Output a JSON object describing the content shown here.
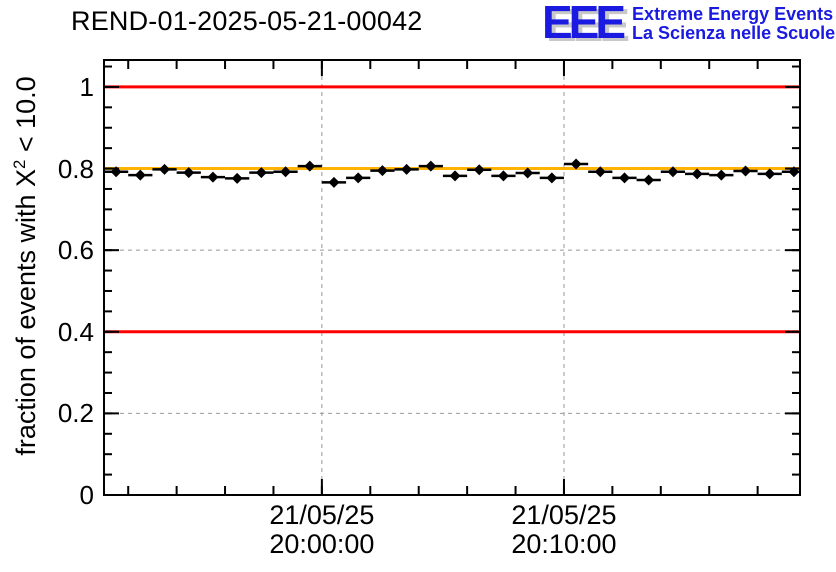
{
  "header": {
    "title": "REND-01-2025-05-21-00042",
    "logo": {
      "acronym": "EEE",
      "line1": "Extreme Energy Events",
      "line2": "La Scienza nelle Scuole",
      "color": "#1a1ae0",
      "shadow_color": "#c8c8c8"
    }
  },
  "chart_data": {
    "type": "scatter",
    "title": "REND-01-2025-05-21-00042",
    "ylabel": {
      "prefix": "fraction of events with X",
      "sup": "2",
      "suffix": " < 10.0"
    },
    "date": "21/05/25",
    "x_axis_type": "time",
    "x_range": [
      "19:51:00",
      "20:19:45"
    ],
    "y_range": [
      0,
      1.066
    ],
    "grid": {
      "on": true,
      "color": "#999999",
      "dash": "4 4"
    },
    "y_ticks": [
      {
        "value": 0,
        "label": "0"
      },
      {
        "value": 0.2,
        "label": "0.2"
      },
      {
        "value": 0.4,
        "label": "0.4"
      },
      {
        "value": 0.6,
        "label": "0.6"
      },
      {
        "value": 0.8,
        "label": "0.8"
      },
      {
        "value": 1,
        "label": "1"
      }
    ],
    "y_minor_step": 0.05,
    "x_minor_step_seconds": 120,
    "x_major_ticks": [
      {
        "time": "20:00:00",
        "label_line1": "21/05/25",
        "label_line2": "20:00:00"
      },
      {
        "time": "20:10:00",
        "label_line1": "21/05/25",
        "label_line2": "20:10:00"
      }
    ],
    "reference_lines": [
      {
        "y": 1.0,
        "color": "#ff0000"
      },
      {
        "y": 0.4,
        "color": "#ff0000"
      },
      {
        "y": 0.8,
        "color": "#ffb300"
      }
    ],
    "series": [
      {
        "name": "fraction of events with chi2 < 10.0",
        "marker": "diamond",
        "color": "#000000",
        "x_error_seconds": 30,
        "y_error": 0.008,
        "times": [
          "19:51:30",
          "19:52:30",
          "19:53:30",
          "19:54:30",
          "19:55:30",
          "19:56:30",
          "19:57:30",
          "19:58:30",
          "19:59:30",
          "20:00:30",
          "20:01:30",
          "20:02:30",
          "20:03:30",
          "20:04:30",
          "20:05:30",
          "20:06:30",
          "20:07:30",
          "20:08:30",
          "20:09:30",
          "20:10:30",
          "20:11:30",
          "20:12:30",
          "20:13:30",
          "20:14:30",
          "20:15:30",
          "20:16:30",
          "20:17:30",
          "20:18:30",
          "20:19:30"
        ],
        "values": [
          0.792,
          0.784,
          0.798,
          0.79,
          0.779,
          0.776,
          0.79,
          0.792,
          0.806,
          0.766,
          0.777,
          0.795,
          0.798,
          0.806,
          0.782,
          0.797,
          0.782,
          0.789,
          0.777,
          0.811,
          0.792,
          0.777,
          0.772,
          0.792,
          0.787,
          0.784,
          0.794,
          0.787,
          0.792
        ]
      }
    ]
  }
}
